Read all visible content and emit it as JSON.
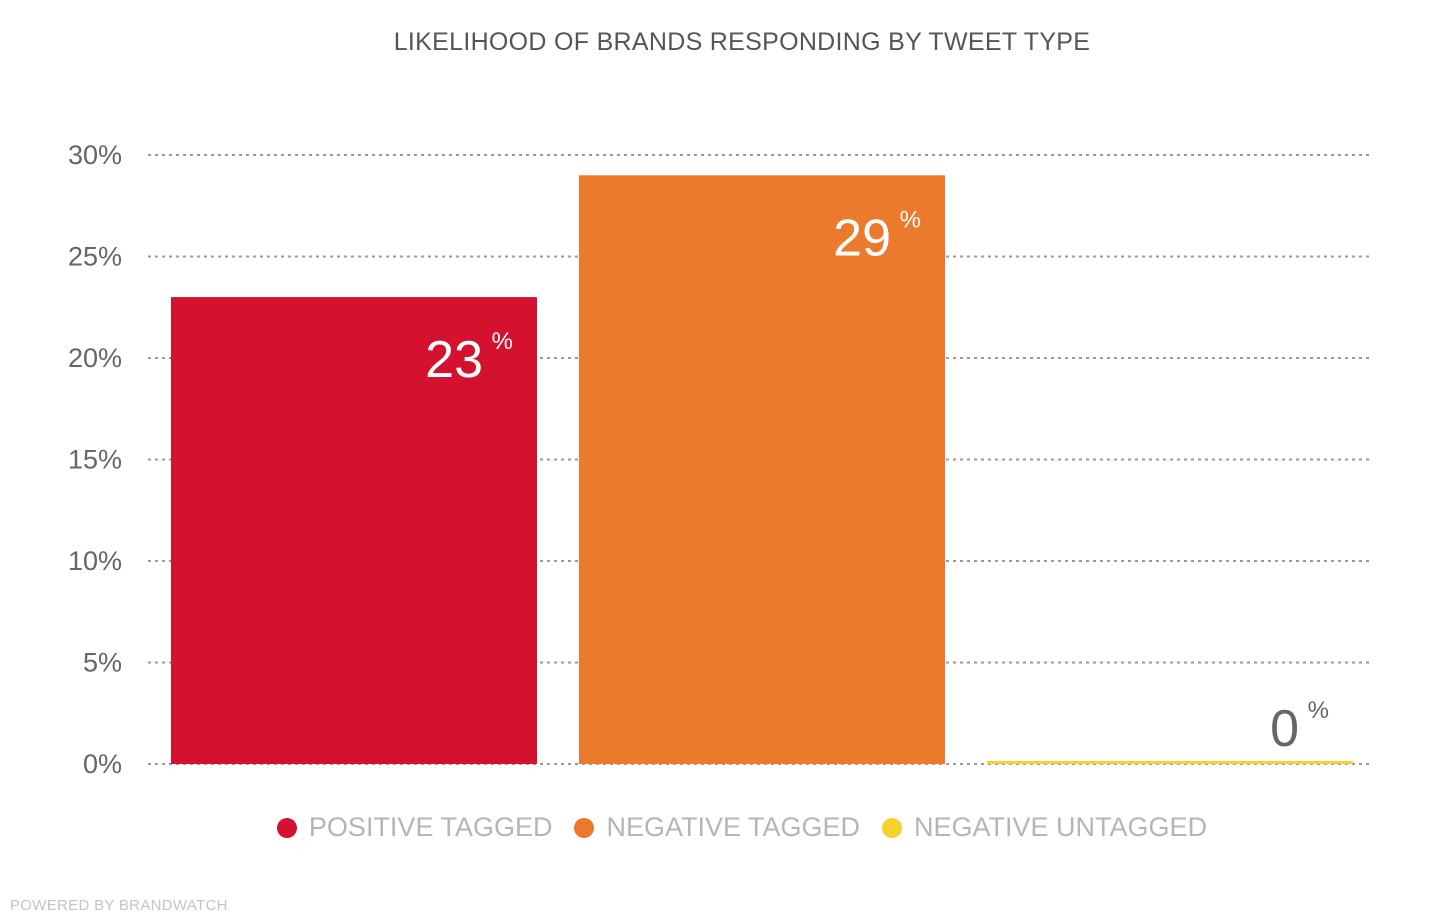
{
  "chart_data": {
    "type": "bar",
    "title": "LIKELIHOOD OF BRANDS RESPONDING BY TWEET TYPE",
    "categories": [
      "POSITIVE TAGGED",
      "NEGATIVE TAGGED",
      "NEGATIVE UNTAGGED"
    ],
    "values": [
      23,
      29,
      0
    ],
    "value_labels": [
      "23",
      "29",
      "0"
    ],
    "value_unit": "%",
    "ylim": [
      0,
      30
    ],
    "y_ticks": [
      "0%",
      "5%",
      "10%",
      "15%",
      "20%",
      "25%",
      "30%"
    ],
    "y_tick_values": [
      0,
      5,
      10,
      15,
      20,
      25,
      30
    ],
    "grid": true,
    "legend_position": "bottom",
    "colors": [
      "#d4112e",
      "#ec7a2d",
      "#f5d22e"
    ]
  },
  "footer": "POWERED BY BRANDWATCH"
}
